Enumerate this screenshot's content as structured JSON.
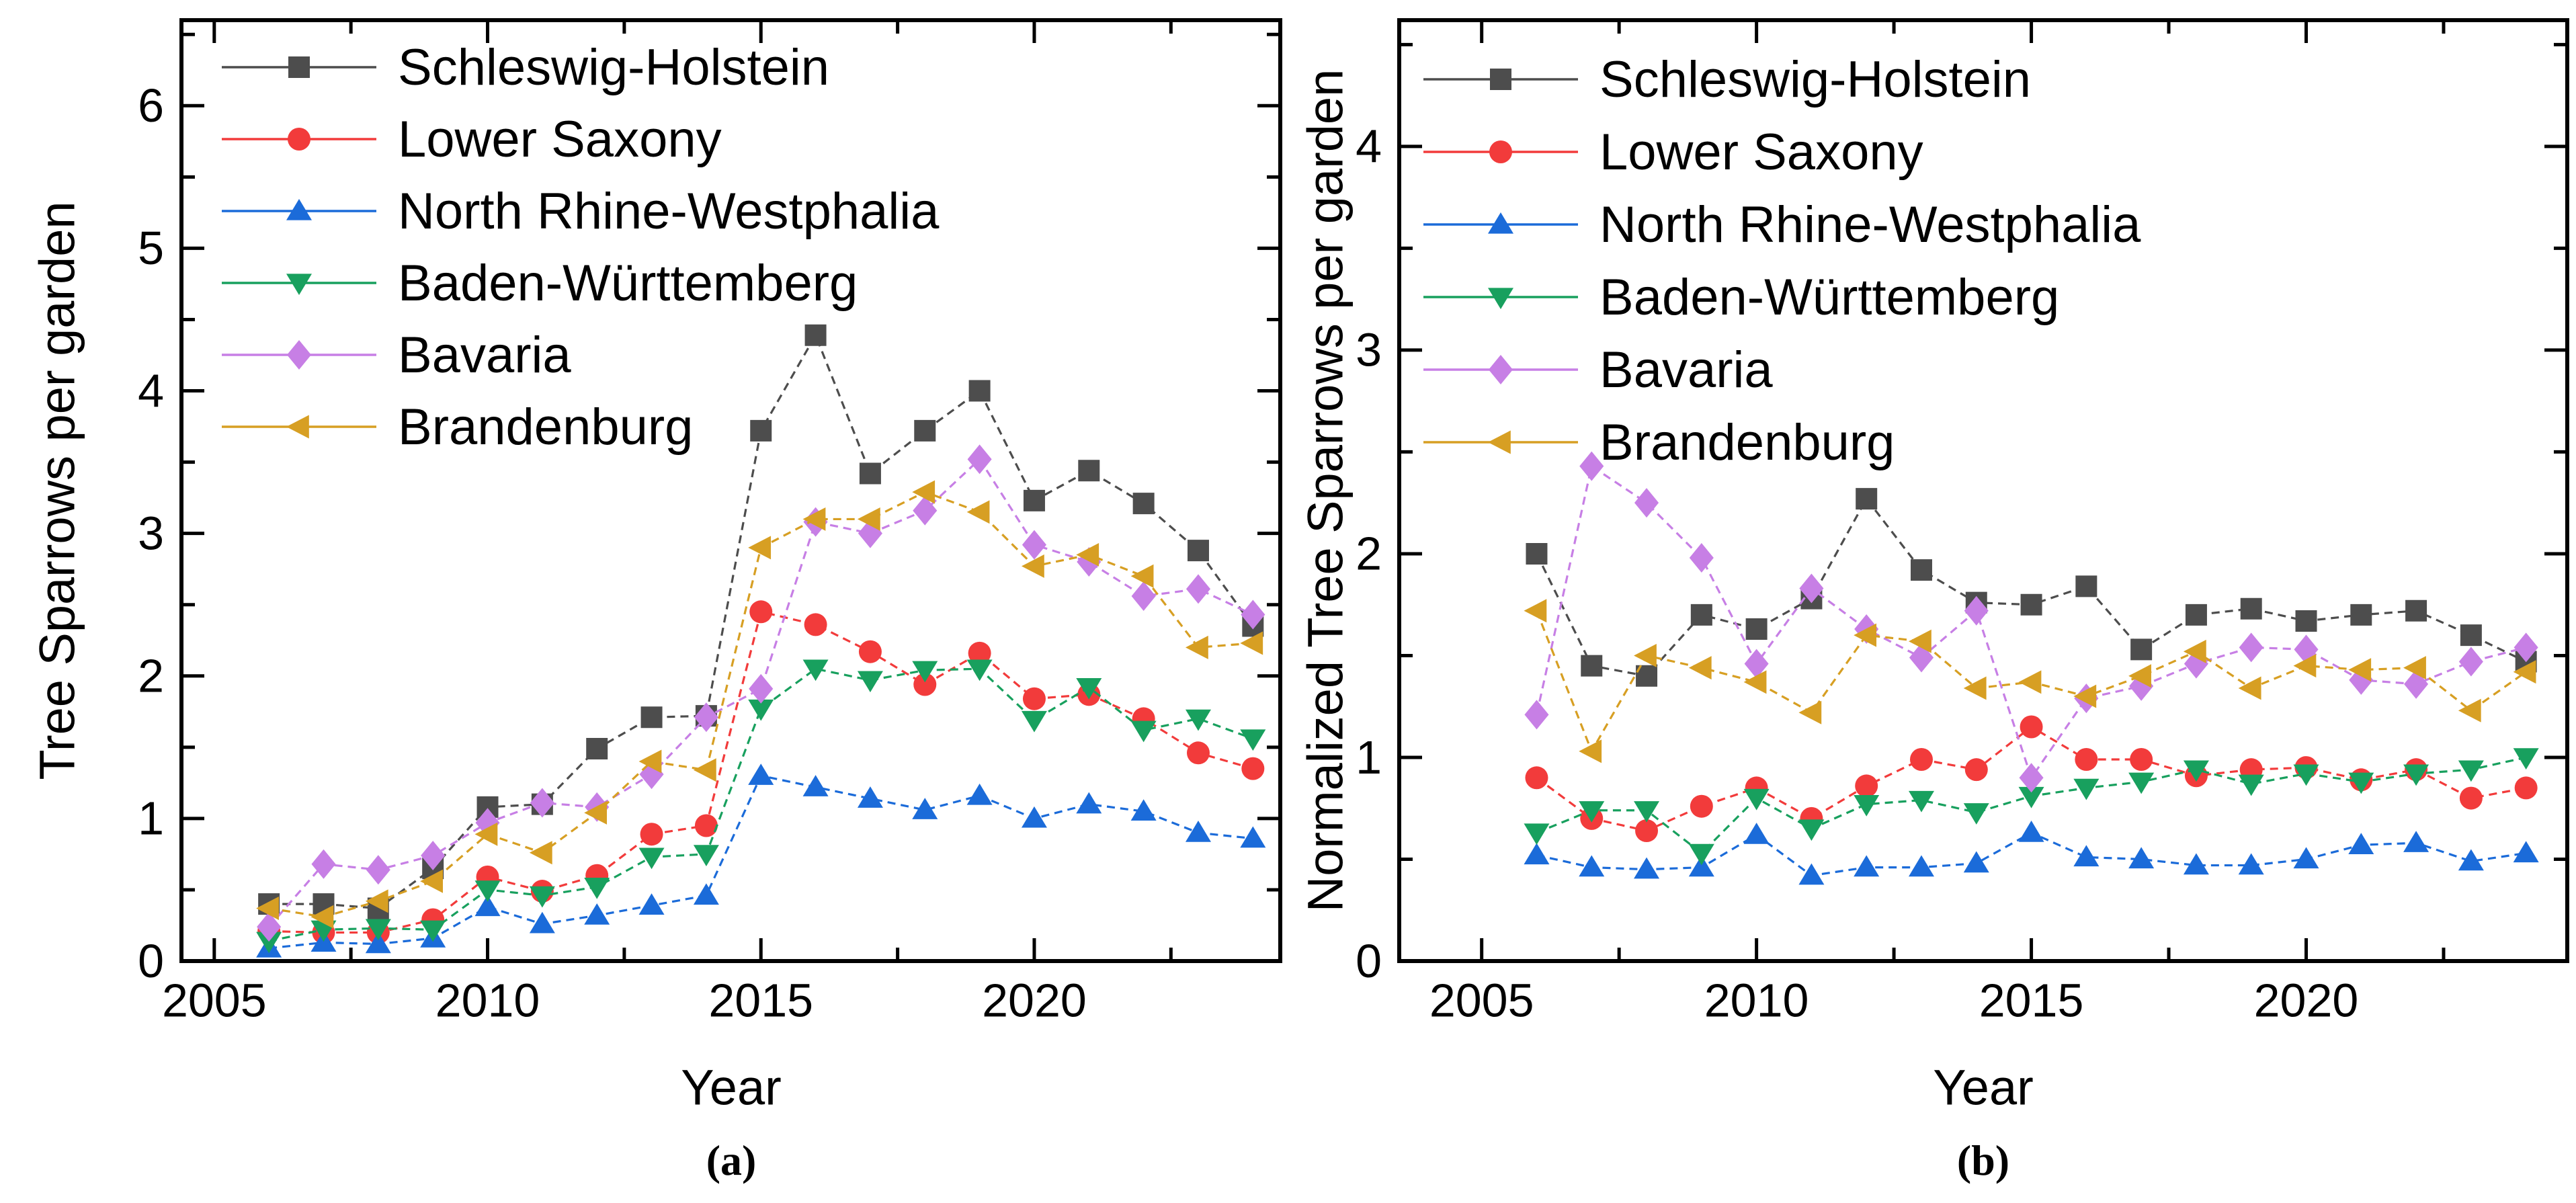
{
  "figure": {
    "background": "#ffffff",
    "description": "Two-panel line chart of Tree Sparrow counts per garden in six German federal states, 2006-2024"
  },
  "chart_data": [
    {
      "id": "a",
      "type": "line",
      "panel_label": "(a)",
      "xlabel": "Year",
      "ylabel": "Tree Sparrows per garden",
      "xlim": [
        2004.4,
        2024.5
      ],
      "ylim": [
        0,
        6.6
      ],
      "x_ticks_major": [
        2005,
        2010,
        2015,
        2020
      ],
      "x_ticks_minor": [
        2007.5,
        2012.5,
        2017.5,
        2022.5
      ],
      "y_ticks_major": [
        0,
        1,
        2,
        3,
        4,
        5,
        6
      ],
      "y_ticks_minor": [
        0.5,
        1.5,
        2.5,
        3.5,
        4.5,
        5.5,
        6.5
      ],
      "grid": false,
      "legend_position": "top-left",
      "years": [
        2006,
        2007,
        2008,
        2009,
        2010,
        2011,
        2012,
        2013,
        2014,
        2015,
        2016,
        2017,
        2018,
        2019,
        2020,
        2021,
        2022,
        2023,
        2024
      ],
      "series": [
        {
          "name": "Schleswig-Holstein",
          "color": "#4d4d4d",
          "marker": "square",
          "values": [
            0.4,
            0.4,
            0.37,
            0.65,
            1.08,
            1.1,
            1.49,
            1.71,
            1.72,
            3.72,
            4.39,
            3.42,
            3.72,
            4.0,
            3.23,
            3.44,
            3.21,
            2.88,
            2.35
          ]
        },
        {
          "name": "Lower Saxony",
          "color": "#f23b3b",
          "marker": "circle",
          "values": [
            0.21,
            0.2,
            0.2,
            0.29,
            0.59,
            0.49,
            0.6,
            0.89,
            0.95,
            2.45,
            2.36,
            2.17,
            1.94,
            2.16,
            1.84,
            1.87,
            1.7,
            1.46,
            1.35
          ]
        },
        {
          "name": "North Rhine-Westphalia",
          "color": "#1b6bd9",
          "marker": "triangle-up",
          "values": [
            0.09,
            0.13,
            0.12,
            0.16,
            0.38,
            0.26,
            0.32,
            0.39,
            0.46,
            1.3,
            1.22,
            1.14,
            1.06,
            1.16,
            1.0,
            1.1,
            1.05,
            0.9,
            0.86
          ]
        },
        {
          "name": "Baden-Württemberg",
          "color": "#18a05e",
          "marker": "triangle-down",
          "values": [
            0.14,
            0.22,
            0.23,
            0.22,
            0.5,
            0.46,
            0.52,
            0.73,
            0.75,
            1.77,
            2.05,
            1.97,
            2.04,
            2.05,
            1.69,
            1.92,
            1.62,
            1.7,
            1.56
          ]
        },
        {
          "name": "Bavaria",
          "color": "#c77fe5",
          "marker": "diamond",
          "values": [
            0.24,
            0.68,
            0.64,
            0.74,
            0.97,
            1.11,
            1.08,
            1.31,
            1.71,
            1.91,
            3.08,
            3.0,
            3.16,
            3.52,
            2.92,
            2.8,
            2.56,
            2.61,
            2.43
          ]
        },
        {
          "name": "Brandenburg",
          "color": "#d79f23",
          "marker": "triangle-left",
          "values": [
            0.37,
            0.31,
            0.42,
            0.56,
            0.89,
            0.76,
            1.04,
            1.4,
            1.34,
            2.9,
            3.1,
            3.1,
            3.29,
            3.15,
            2.77,
            2.85,
            2.7,
            2.2,
            2.23
          ]
        }
      ]
    },
    {
      "id": "b",
      "type": "line",
      "panel_label": "(b)",
      "xlabel": "Year",
      "ylabel": "Normalized Tree Sparrows per garden",
      "xlim": [
        2003.5,
        2024.75
      ],
      "ylim": [
        0,
        4.62
      ],
      "x_ticks_major": [
        2005,
        2010,
        2015,
        2020
      ],
      "x_ticks_minor": [
        2007.5,
        2012.5,
        2017.5,
        2022.5
      ],
      "y_ticks_major": [
        0,
        1,
        2,
        3,
        4
      ],
      "y_ticks_minor": [
        0.5,
        1.5,
        2.5,
        3.5,
        4.5
      ],
      "grid": false,
      "legend_position": "top-left",
      "years": [
        2006,
        2007,
        2008,
        2009,
        2010,
        2011,
        2012,
        2013,
        2014,
        2015,
        2016,
        2017,
        2018,
        2019,
        2020,
        2021,
        2022,
        2023,
        2024
      ],
      "series": [
        {
          "name": "Schleswig-Holstein",
          "color": "#4d4d4d",
          "marker": "square",
          "values": [
            2.0,
            1.45,
            1.4,
            1.7,
            1.63,
            1.78,
            2.27,
            1.92,
            1.76,
            1.75,
            1.84,
            1.53,
            1.7,
            1.73,
            1.67,
            1.7,
            1.72,
            1.6,
            1.47
          ]
        },
        {
          "name": "Lower Saxony",
          "color": "#f23b3b",
          "marker": "circle",
          "values": [
            0.9,
            0.7,
            0.64,
            0.76,
            0.85,
            0.7,
            0.86,
            0.99,
            0.94,
            1.15,
            0.99,
            0.99,
            0.91,
            0.94,
            0.95,
            0.89,
            0.94,
            0.8,
            0.85
          ]
        },
        {
          "name": "North Rhine-Westphalia",
          "color": "#1b6bd9",
          "marker": "triangle-up",
          "values": [
            0.52,
            0.46,
            0.45,
            0.46,
            0.62,
            0.42,
            0.46,
            0.46,
            0.48,
            0.63,
            0.51,
            0.5,
            0.47,
            0.47,
            0.5,
            0.57,
            0.58,
            0.49,
            0.53
          ]
        },
        {
          "name": "Baden-Württemberg",
          "color": "#18a05e",
          "marker": "triangle-down",
          "values": [
            0.63,
            0.74,
            0.74,
            0.53,
            0.8,
            0.65,
            0.77,
            0.79,
            0.73,
            0.81,
            0.85,
            0.88,
            0.94,
            0.87,
            0.92,
            0.88,
            0.92,
            0.94,
            1.0
          ]
        },
        {
          "name": "Bavaria",
          "color": "#c77fe5",
          "marker": "diamond",
          "values": [
            1.21,
            2.43,
            2.25,
            1.98,
            1.46,
            1.83,
            1.63,
            1.49,
            1.72,
            0.9,
            1.29,
            1.35,
            1.46,
            1.54,
            1.53,
            1.38,
            1.36,
            1.47,
            1.54
          ]
        },
        {
          "name": "Brandenburg",
          "color": "#d79f23",
          "marker": "triangle-left",
          "values": [
            1.72,
            1.03,
            1.5,
            1.44,
            1.37,
            1.22,
            1.6,
            1.57,
            1.34,
            1.37,
            1.3,
            1.4,
            1.52,
            1.34,
            1.45,
            1.43,
            1.44,
            1.23,
            1.42
          ]
        }
      ]
    }
  ]
}
